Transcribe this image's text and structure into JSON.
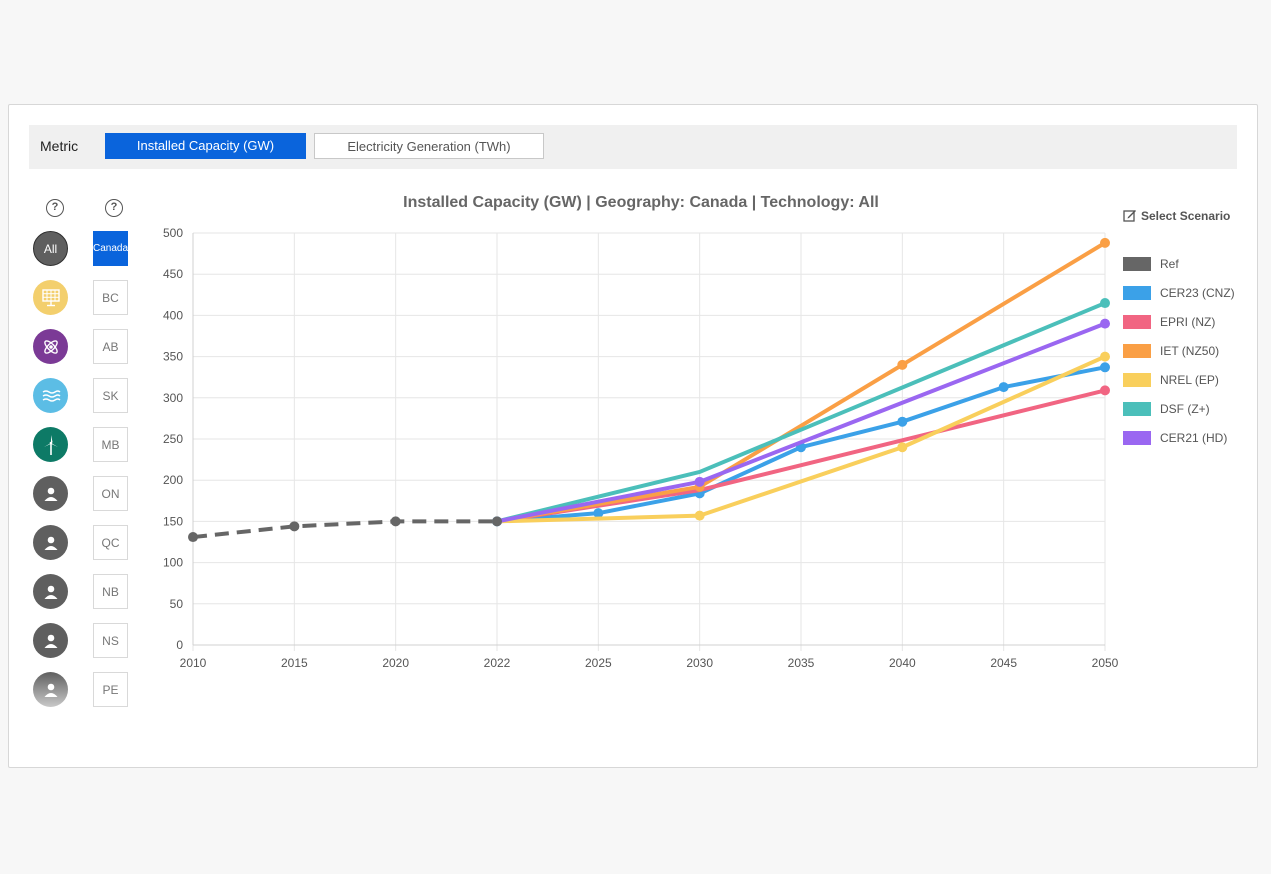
{
  "metric": {
    "label": "Metric",
    "options": [
      "Installed Capacity (GW)",
      "Electricity Generation (TWh)"
    ],
    "selected": "Installed Capacity (GW)"
  },
  "help": {
    "tech": "?",
    "geo": "?"
  },
  "technologies": [
    {
      "name": "all",
      "label": "All",
      "icon": "all-icon",
      "color": "#5f5f5f"
    },
    {
      "name": "solar",
      "label": "",
      "icon": "solar-panel-icon",
      "color": "#f3cf6d"
    },
    {
      "name": "nuclear",
      "label": "",
      "icon": "atom-icon",
      "color": "#7b3a96"
    },
    {
      "name": "hydro",
      "label": "",
      "icon": "water-waves-icon",
      "color": "#5cbde5"
    },
    {
      "name": "wind",
      "label": "",
      "icon": "wind-turbine-icon",
      "color": "#0d7a66"
    },
    {
      "name": "tech-6",
      "label": "",
      "icon": "person-icon",
      "color": "#5f5f5f"
    },
    {
      "name": "tech-7",
      "label": "",
      "icon": "person-icon",
      "color": "#5f5f5f"
    },
    {
      "name": "tech-8",
      "label": "",
      "icon": "person-icon",
      "color": "#5f5f5f"
    },
    {
      "name": "tech-9",
      "label": "",
      "icon": "person-icon",
      "color": "#5f5f5f"
    },
    {
      "name": "tech-10",
      "label": "",
      "icon": "person-icon",
      "color": "#5f5f5f"
    }
  ],
  "geographies": [
    "Canada",
    "BC",
    "AB",
    "SK",
    "MB",
    "ON",
    "QC",
    "NB",
    "NS",
    "PE"
  ],
  "selected_geography": "Canada",
  "select_scenario_label": "Select Scenario",
  "chart_data": {
    "type": "line",
    "title": "Installed Capacity (GW) | Geography: Canada | Technology: All",
    "xlabel": "",
    "ylabel": "",
    "x": [
      2010,
      2015,
      2020,
      2022,
      2025,
      2030,
      2035,
      2040,
      2045,
      2050
    ],
    "x_tick_labels": [
      "2010",
      "2015",
      "2020",
      "2022",
      "2025",
      "2030",
      "2035",
      "2040",
      "2045",
      "2050"
    ],
    "y_ticks": [
      0,
      50,
      100,
      150,
      200,
      250,
      300,
      350,
      400,
      450,
      500
    ],
    "ylim": [
      0,
      500
    ],
    "grid": true,
    "legend_position": "right",
    "series": [
      {
        "name": "Ref",
        "color": "#666666",
        "dashed": true,
        "x": [
          2010,
          2015,
          2020,
          2022
        ],
        "y": [
          131,
          144,
          150,
          150
        ],
        "markers": [
          2010,
          2015,
          2020,
          2022
        ]
      },
      {
        "name": "CER23 (CNZ)",
        "color": "#3ba1e8",
        "dashed": false,
        "x": [
          2022,
          2025,
          2030,
          2035,
          2040,
          2045,
          2050
        ],
        "y": [
          150,
          160,
          184,
          240,
          271,
          313,
          337
        ],
        "markers": [
          2022,
          2025,
          2030,
          2035,
          2040,
          2045,
          2050
        ]
      },
      {
        "name": "EPRI (NZ)",
        "color": "#f16582",
        "dashed": false,
        "x": [
          2022,
          2030,
          2050
        ],
        "y": [
          150,
          188,
          309
        ],
        "markers": [
          2050
        ]
      },
      {
        "name": "IET (NZ50)",
        "color": "#fa9f45",
        "dashed": false,
        "x": [
          2022,
          2030,
          2040,
          2050
        ],
        "y": [
          150,
          192,
          340,
          488
        ],
        "markers": [
          2030,
          2040,
          2050
        ]
      },
      {
        "name": "NREL (EP)",
        "color": "#f9cf5c",
        "dashed": false,
        "x": [
          2022,
          2030,
          2040,
          2050
        ],
        "y": [
          150,
          157,
          240,
          350
        ],
        "markers": [
          2030,
          2040,
          2050
        ]
      },
      {
        "name": "DSF (Z+)",
        "color": "#4bbfba",
        "dashed": false,
        "x": [
          2022,
          2030,
          2050
        ],
        "y": [
          150,
          210,
          415
        ],
        "markers": [
          2050
        ]
      },
      {
        "name": "CER21 (HD)",
        "color": "#9a67f1",
        "dashed": false,
        "x": [
          2022,
          2030,
          2050
        ],
        "y": [
          150,
          198,
          390
        ],
        "markers": [
          2030,
          2050
        ]
      }
    ]
  }
}
